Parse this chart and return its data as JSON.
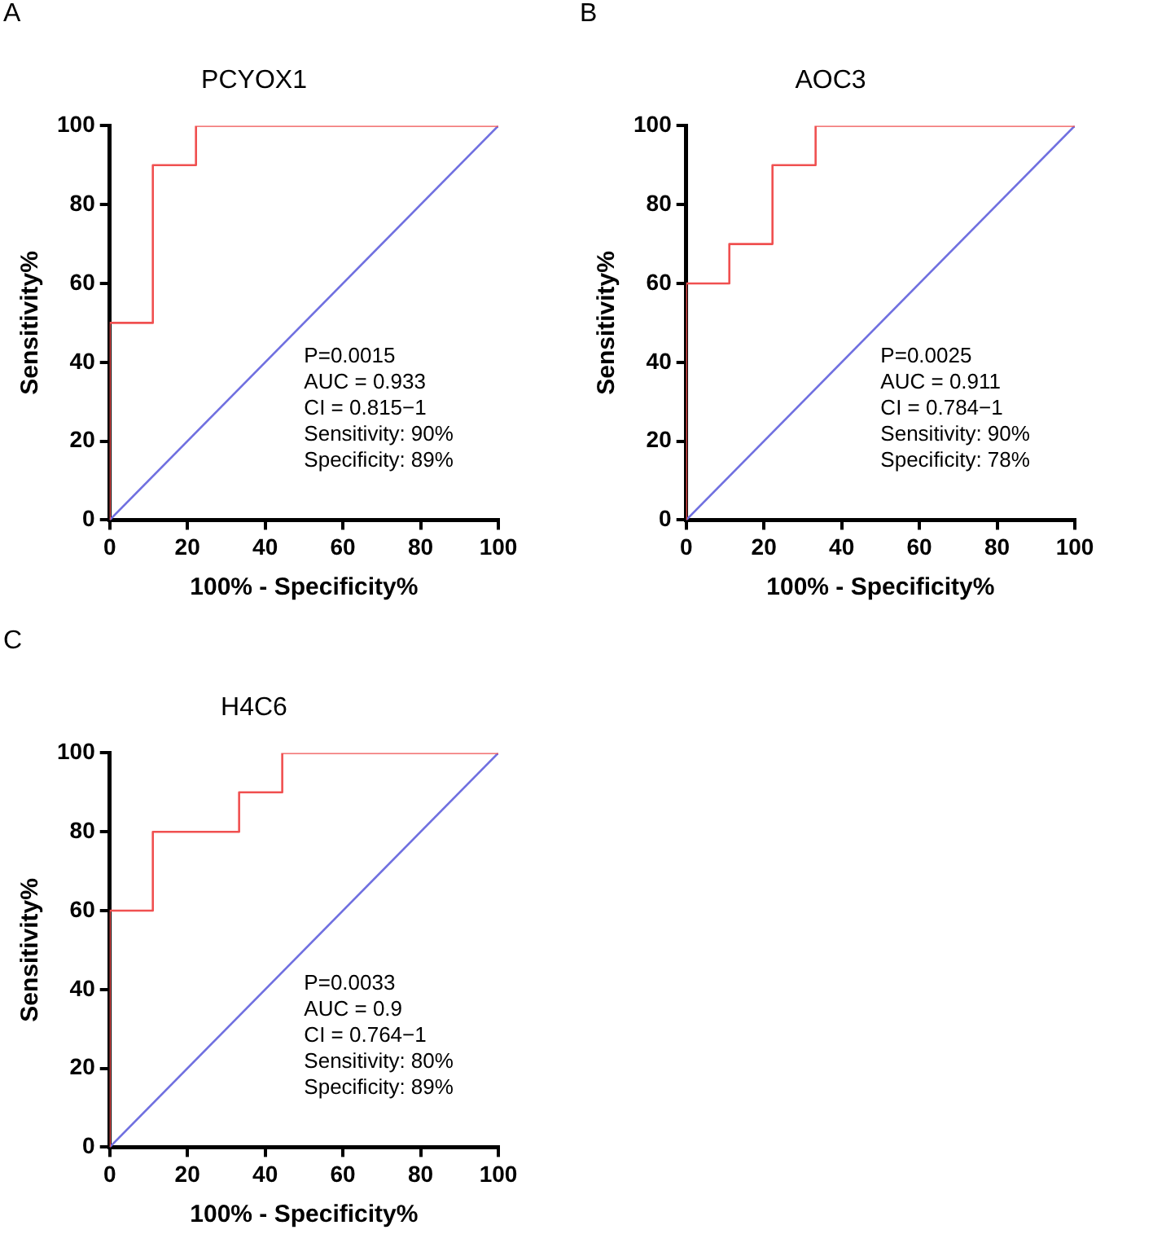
{
  "chart_data": [
    {
      "type": "line",
      "title": "PCYOX1",
      "xlabel": "100% - Specificity%",
      "ylabel": "Sensitivity%",
      "xlim": [
        0,
        100
      ],
      "ylim": [
        0,
        100
      ],
      "xticks": [
        0,
        20,
        40,
        60,
        80,
        100
      ],
      "yticks": [
        0,
        20,
        40,
        60,
        80,
        100
      ],
      "grid": false,
      "legend": false,
      "marker": "none",
      "line_style": "solid",
      "annotations": [
        "A",
        "P=0.0015",
        "AUC = 0.933",
        "CI = 0.815−1",
        "Sensitivity: 90%",
        "Specificity: 89%"
      ],
      "series": [
        {
          "color": "#f05050",
          "x": [
            0,
            0,
            11.1,
            11.1,
            22.2,
            22.2,
            100
          ],
          "values": [
            0,
            50,
            50,
            90,
            90,
            100,
            100
          ]
        },
        {
          "color": "#7070e0",
          "x": [
            0,
            100
          ],
          "values": [
            0,
            100
          ]
        }
      ]
    },
    {
      "type": "line",
      "title": "AOC3",
      "xlabel": "100% - Specificity%",
      "ylabel": "Sensitivity%",
      "xlim": [
        0,
        100
      ],
      "ylim": [
        0,
        100
      ],
      "xticks": [
        0,
        20,
        40,
        60,
        80,
        100
      ],
      "yticks": [
        0,
        20,
        40,
        60,
        80,
        100
      ],
      "grid": false,
      "legend": false,
      "marker": "none",
      "line_style": "solid",
      "annotations": [
        "B",
        "P=0.0025",
        "AUC = 0.911",
        "CI = 0.784−1",
        "Sensitivity: 90%",
        "Specificity: 78%"
      ],
      "series": [
        {
          "color": "#f05050",
          "x": [
            0,
            0,
            11.1,
            11.1,
            22.2,
            22.2,
            33.3,
            33.3,
            100
          ],
          "values": [
            0,
            60,
            60,
            70,
            70,
            90,
            90,
            100,
            100
          ]
        },
        {
          "color": "#7070e0",
          "x": [
            0,
            100
          ],
          "values": [
            0,
            100
          ]
        }
      ]
    },
    {
      "type": "line",
      "title": "H4C6",
      "xlabel": "100% - Specificity%",
      "ylabel": "Sensitivity%",
      "xlim": [
        0,
        100
      ],
      "ylim": [
        0,
        100
      ],
      "xticks": [
        0,
        20,
        40,
        60,
        80,
        100
      ],
      "yticks": [
        0,
        20,
        40,
        60,
        80,
        100
      ],
      "grid": false,
      "legend": false,
      "marker": "none",
      "line_style": "solid",
      "annotations": [
        "C",
        "P=0.0033",
        "AUC = 0.9",
        "CI = 0.764−1",
        "Sensitivity: 80%",
        "Specificity: 89%"
      ],
      "series": [
        {
          "color": "#f05050",
          "x": [
            0,
            0,
            11.1,
            11.1,
            33.3,
            33.3,
            44.4,
            44.4,
            100
          ],
          "values": [
            0,
            60,
            60,
            80,
            80,
            90,
            90,
            100,
            100
          ]
        },
        {
          "color": "#7070e0",
          "x": [
            0,
            100
          ],
          "values": [
            0,
            100
          ]
        }
      ]
    }
  ]
}
